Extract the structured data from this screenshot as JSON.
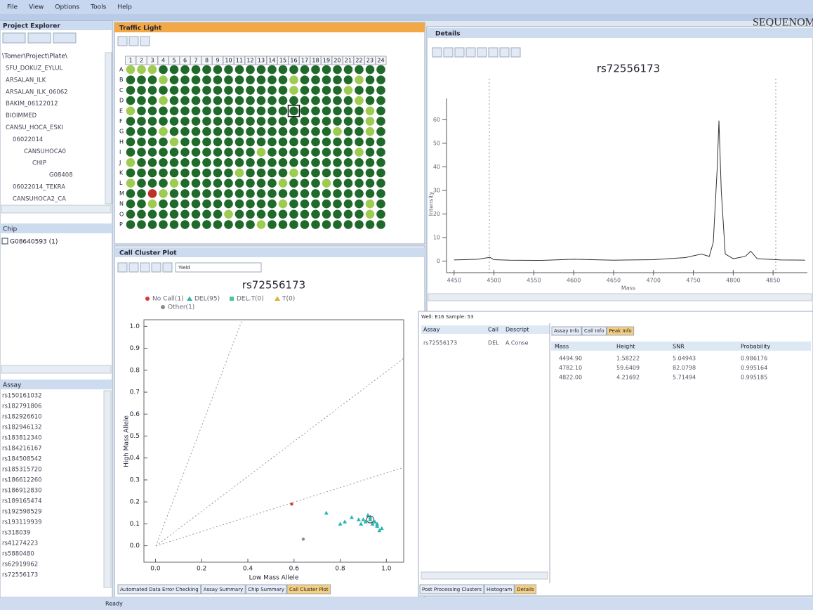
{
  "menu": [
    "File",
    "View",
    "Options",
    "Tools",
    "Help"
  ],
  "brand": "SEQUENOM",
  "project_explorer": {
    "title": "Project Explorer",
    "path": "\\Tomer\\Project\\Plate\\",
    "tree": [
      "SFU_DOKUZ_EYLUL",
      "ARSALAN_ILK",
      "ARSALAN_ILK_06062",
      "BAKIM_06122012",
      "BIOIMMED",
      "CANSU_HOCA_ESKI",
      "06022014",
      "CANSUHOCA0",
      "CHIP",
      "G08408",
      "06022014_TEKRA",
      "CANSUHOCA2_CA"
    ],
    "chip_header": "Chip",
    "chip_item": "G08640593 (1)",
    "assay_header": "Assay",
    "assays": [
      "rs150161032",
      "rs182791806",
      "rs182926610",
      "rs182946132",
      "rs183812340",
      "rs184216167",
      "rs184508542",
      "rs185315720",
      "rs186612260",
      "rs186912830",
      "rs189165474",
      "rs192598529",
      "rs193119939",
      "rs318039",
      "rs41274223",
      "rs5880480",
      "rs62919962",
      "rs72556173"
    ]
  },
  "traffic_light": {
    "title": "Traffic Light",
    "columns": [
      1,
      2,
      3,
      4,
      5,
      6,
      7,
      8,
      9,
      10,
      11,
      12,
      13,
      14,
      15,
      16,
      17,
      18,
      19,
      20,
      21,
      22,
      23,
      24
    ],
    "rows": [
      "A",
      "B",
      "C",
      "D",
      "E",
      "F",
      "G",
      "H",
      "I",
      "J",
      "K",
      "L",
      "M",
      "N",
      "O",
      "P"
    ]
  },
  "cluster_plot": {
    "title": "Call Cluster Plot",
    "filter": "Yield",
    "tabs": [
      "Automated Data Error Checking",
      "Assay Summary",
      "Chip Summary",
      "Call Cluster Plot"
    ],
    "chart_data": {
      "type": "scatter",
      "title": "rs72556173",
      "xlabel": "Low Mass Allele",
      "ylabel": "High Mass Allele",
      "xlim": [
        -0.05,
        1.075
      ],
      "ylim": [
        -0.075,
        1.03
      ],
      "xticks": [
        {
          "value": 0,
          "label": "0.0"
        },
        0.2,
        0.4,
        0.6,
        0.8,
        {
          "value": 1,
          "label": "1.0"
        }
      ],
      "yticks": [
        {
          "value": 0,
          "label": "0.0"
        },
        0.1,
        0.2,
        0.3,
        0.4,
        0.5,
        0.6,
        0.7,
        0.8,
        0.9,
        {
          "value": 1,
          "label": "1.0"
        }
      ],
      "series": [
        {
          "name": "No Call(1)",
          "color": "#d9383a",
          "marker": "circle",
          "x": [
            0.59
          ],
          "values": [
            0.19
          ]
        },
        {
          "name": "DEL(95)",
          "color": "#2bb5b0",
          "marker": "triangle",
          "x": [
            0.93,
            0.95,
            0.9,
            0.96,
            0.98,
            0.94,
            0.92,
            0.88,
            0.85,
            0.97,
            0.91,
            0.74,
            0.8,
            0.82,
            0.89,
            0.93,
            0.96
          ],
          "values": [
            0.13,
            0.11,
            0.12,
            0.09,
            0.08,
            0.1,
            0.14,
            0.12,
            0.13,
            0.07,
            0.11,
            0.15,
            0.1,
            0.11,
            0.1,
            0.12,
            0.1
          ]
        },
        {
          "name": "DEL.T(0)",
          "color": "#45c9a0",
          "marker": "square",
          "x": [],
          "values": []
        },
        {
          "name": "T(0)",
          "color": "#d8b431",
          "marker": "triangle",
          "x": [],
          "values": []
        },
        {
          "name": "Other(1)",
          "color": "#8a8a8a",
          "marker": "circle",
          "x": [
            0.64
          ],
          "values": [
            0.03
          ]
        }
      ]
    }
  },
  "details": {
    "title": "Details",
    "chart_data": {
      "type": "line",
      "title": "rs72556173",
      "xlabel": "Mass",
      "ylabel": "Intensity",
      "color": "#333333",
      "xlim": [
        4437,
        4893
      ],
      "ylim": [
        -7,
        78
      ],
      "xticks": [
        4450,
        4500,
        4550,
        4600,
        4650,
        4700,
        4750,
        4800,
        4850
      ],
      "yticks": [
        0,
        10,
        20,
        30,
        40,
        50,
        60
      ],
      "x": [
        4450,
        4480,
        4494.9,
        4500,
        4520,
        4560,
        4600,
        4650,
        4700,
        4740,
        4760,
        4770,
        4775,
        4780,
        4782.1,
        4785,
        4790,
        4800,
        4815,
        4822,
        4830,
        4860,
        4890
      ],
      "values": [
        0.5,
        0.8,
        1.6,
        0.6,
        0.4,
        0.3,
        0.8,
        0.4,
        0.6,
        1.5,
        3,
        2,
        8,
        40,
        59.6,
        30,
        3,
        1,
        2,
        4.2,
        1,
        0.5,
        0.4
      ]
    },
    "well_info": "Well: E16 Sample: 53",
    "assay_table": {
      "header": [
        "Assay",
        "Call",
        "Descript"
      ],
      "rows": [
        [
          "rs72556173",
          "DEL",
          "A.Conse"
        ]
      ]
    },
    "info_tabs": [
      "Assay Info",
      "Call Info",
      "Peak Info"
    ],
    "peak_table": {
      "header": [
        "Mass",
        "Height",
        "SNR",
        "Probability"
      ],
      "rows": [
        [
          "4494.90",
          "1.58222",
          "5.04943",
          "0.986176"
        ],
        [
          "4782.10",
          "59.6409",
          "82.0798",
          "0.995164"
        ],
        [
          "4822.00",
          "4.21692",
          "5.71494",
          "0.995185"
        ]
      ]
    },
    "tabs": [
      "Post Processing Clusters",
      "Histogram",
      "Details"
    ]
  },
  "status": "Ready"
}
